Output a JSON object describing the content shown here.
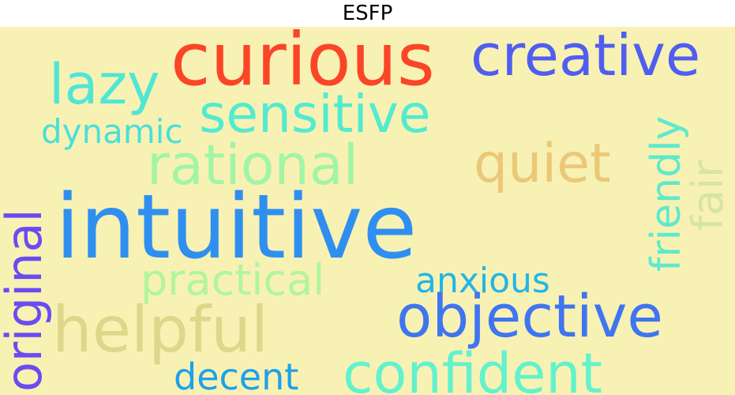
{
  "title": "ESFP",
  "words": [
    {
      "text": "curious",
      "color": "#fb4527"
    },
    {
      "text": "creative",
      "color": "#4f5ef0"
    },
    {
      "text": "lazy",
      "color": "#50e6d6"
    },
    {
      "text": "sensitive",
      "color": "#52ebd0"
    },
    {
      "text": "dynamic",
      "color": "#4adfd9"
    },
    {
      "text": "rational",
      "color": "#a2f5a4"
    },
    {
      "text": "quiet",
      "color": "#ebc878"
    },
    {
      "text": "friendly",
      "color": "#5deacb"
    },
    {
      "text": "fair",
      "color": "#d4e6a0"
    },
    {
      "text": "original",
      "color": "#6a4cf0"
    },
    {
      "text": "intuitive",
      "color": "#2f8ff1"
    },
    {
      "text": "practical",
      "color": "#b1f59c"
    },
    {
      "text": "anxious",
      "color": "#22b5e8"
    },
    {
      "text": "helpful",
      "color": "#ded68a"
    },
    {
      "text": "objective",
      "color": "#3f75f0"
    },
    {
      "text": "decent",
      "color": "#1ea1ea"
    },
    {
      "text": "confident",
      "color": "#62f2cd"
    }
  ]
}
